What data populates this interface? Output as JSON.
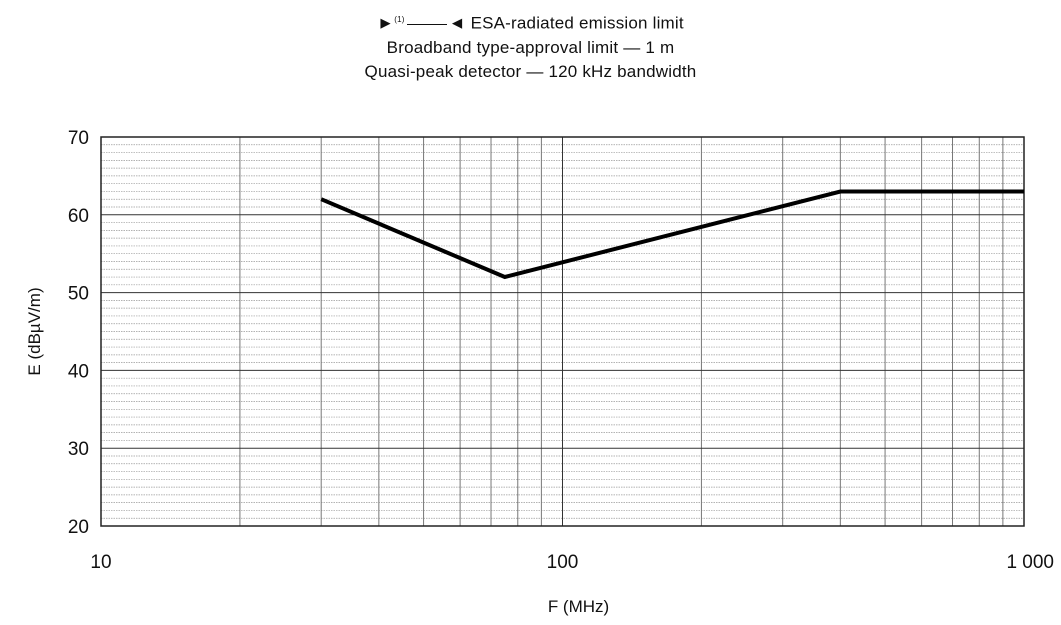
{
  "header": {
    "marker_left": "►",
    "marker_sup": "(1)",
    "marker_right": "◄",
    "title": "ESA-radiated emission limit",
    "subtitle1": "Broadband type-approval limit — 1 m",
    "subtitle2": "Quasi-peak detector — 120 kHz bandwidth"
  },
  "chart_data": {
    "type": "line",
    "title": "ESA-radiated emission limit",
    "subtitle": [
      "Broadband type-approval limit — 1 m",
      "Quasi-peak detector — 120 kHz bandwidth"
    ],
    "xlabel": "F (MHz)",
    "ylabel": "E (dBµV/m)",
    "x_scale": "log",
    "xlim": [
      10,
      1000
    ],
    "ylim": [
      20,
      70
    ],
    "x_ticks": [
      10,
      100,
      1000
    ],
    "x_tick_labels": [
      "10",
      "100",
      "1 000"
    ],
    "y_ticks": [
      20,
      30,
      40,
      50,
      60,
      70
    ],
    "y_tick_labels": [
      "20",
      "30",
      "40",
      "50",
      "60",
      "70"
    ],
    "grid": true,
    "series": [
      {
        "x": [
          30,
          75,
          400,
          1000
        ],
        "y": [
          62,
          52,
          63,
          63
        ]
      }
    ]
  }
}
